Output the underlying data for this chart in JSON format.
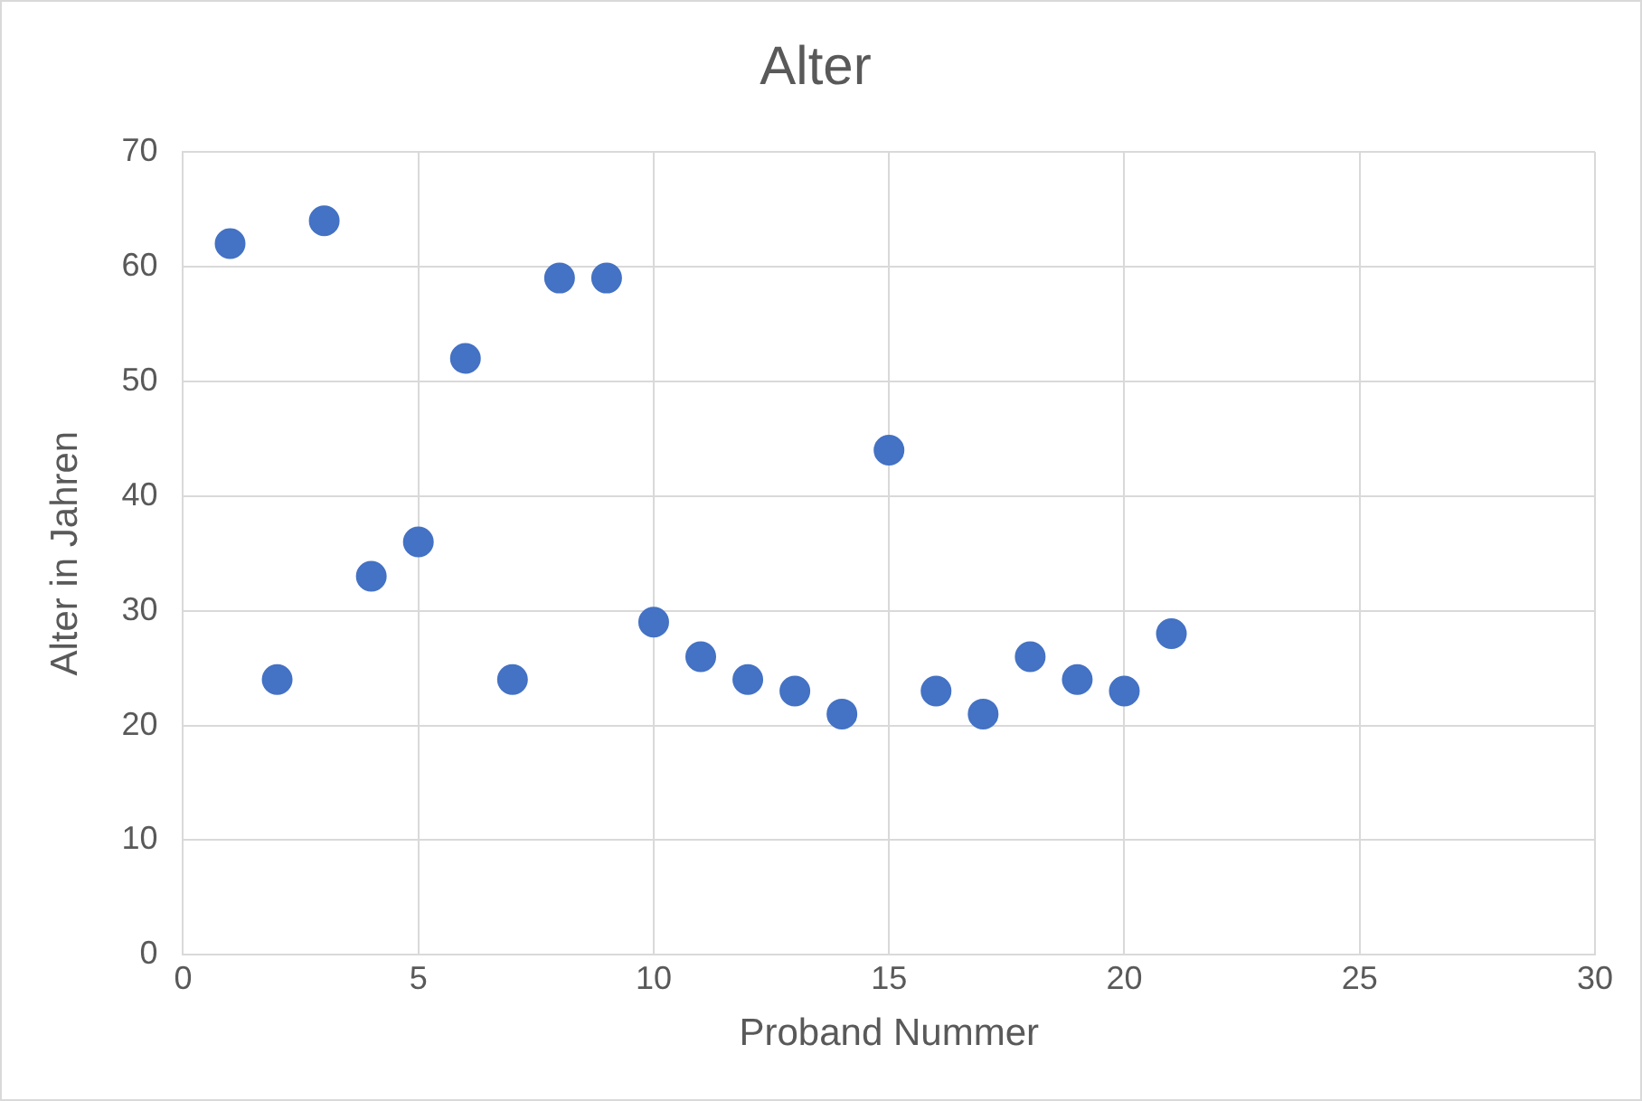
{
  "chart_data": {
    "type": "scatter",
    "title": "Alter",
    "xlabel": "Proband Nummer",
    "ylabel": "Alter in Jahren",
    "x": [
      1,
      2,
      3,
      4,
      5,
      6,
      7,
      8,
      9,
      10,
      11,
      12,
      13,
      14,
      15,
      16,
      17,
      18,
      19,
      20,
      21
    ],
    "series": [
      {
        "color": "#4472c4",
        "values": [
          62,
          24,
          64,
          33,
          36,
          52,
          24,
          59,
          59,
          29,
          26,
          24,
          23,
          21,
          44,
          23,
          21,
          26,
          24,
          23,
          28
        ]
      }
    ],
    "xlim": [
      0,
      30
    ],
    "xticks": [
      0,
      5,
      10,
      15,
      20,
      25,
      30
    ],
    "ylim": [
      0,
      70
    ],
    "yticks": [
      0,
      10,
      20,
      30,
      40,
      50,
      60,
      70
    ],
    "grid": true,
    "legend": false,
    "marker": "circle"
  }
}
